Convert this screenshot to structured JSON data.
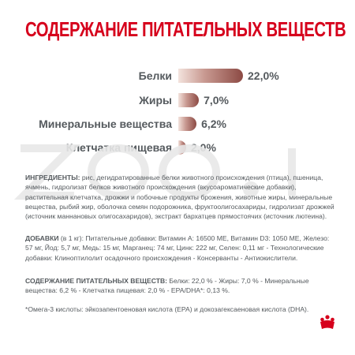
{
  "title": "СОДЕРЖАНИЕ ПИТАТЕЛЬНЫХ ВЕЩЕСТВ",
  "chart_data": {
    "type": "bar",
    "categories": [
      "Белки",
      "Жиры",
      "Минеральные вещества",
      "Клетчатка пищевая"
    ],
    "values": [
      22.0,
      7.0,
      6.2,
      2.0
    ],
    "value_labels": [
      "22,0%",
      "7,0%",
      "6,2%",
      "2,0%"
    ],
    "title": "",
    "xlabel": "",
    "ylabel": ""
  },
  "watermark": "ZOO.I",
  "ingredients": {
    "heading": "ИНГРЕДИЕНТЫ:",
    "text": " рис, дегидратированные белки животного происхождения (птица), пшеница, ячмень, гидролизат белков животного происхождения (вкусоароматические добавки), растительная клетчатка, дрожжи и побочные продукты брожения, животные жиры, минеральные вещества, рыбий жир, оболочка семян подорожника, фруктоолигосахариды, гидролизат дрожжей (источник маннановых олигосахаридов), экстракт бархатцев прямостоячих (источник лютеина)."
  },
  "additives": {
    "heading": "ДОБАВКИ",
    "unit": " (в 1 кг)",
    "text": ": Питательные добавки: Витамин А: 16500 МЕ, Витамин D3: 1050 МЕ, Железо: 57 мг, Йод: 5,7 мг, Медь: 15 мг, Марганец: 74 мг, Цинк: 222 мг, Селен: 0,11 мг - Технологические добавки: Клинoптилолит осадочного происхождения - Консерванты - Антиокислители."
  },
  "nutrients": {
    "heading": "СОДЕРЖАНИЕ ПИТАТЕЛЬНЫХ ВЕЩЕСТВ:",
    "text": " Белки: 22,0 % - Жиры: 7,0 % - Минеральные вещества: 6,2 % - Клетчатка пищевая: 2,0 % - EPA/DHA*: 0,13 %."
  },
  "footnote": "*Омега-3 кислоты: эйкозапентоеновая кислота (EPA) и докозагексаеновая кислота (DHA).",
  "colors": {
    "brand_red": "#d6001c",
    "bar_dark": "#8c4a44",
    "text_gray": "#555a5e"
  }
}
